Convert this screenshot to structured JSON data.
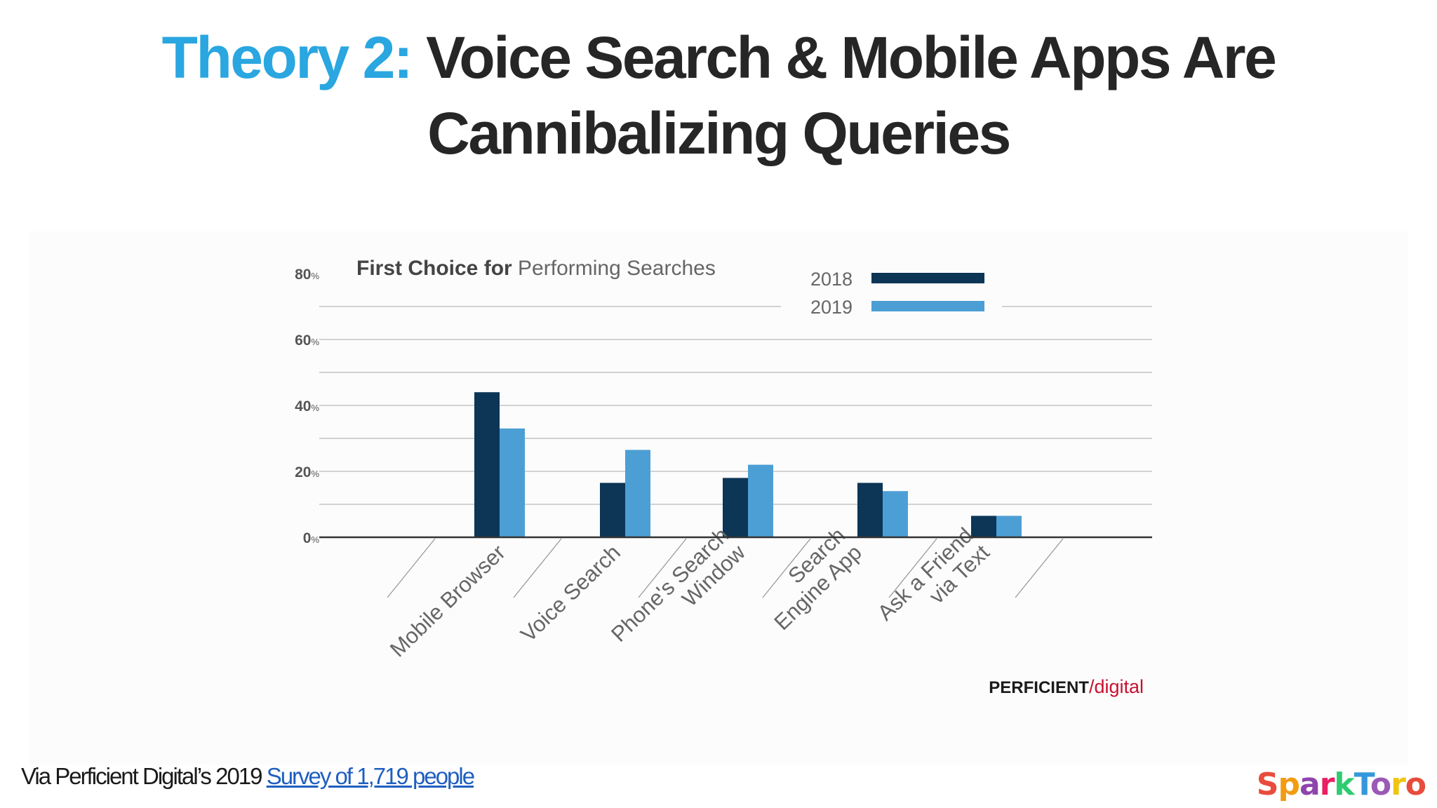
{
  "slide": {
    "title_prefix": "Theory 2:",
    "title_rest": " Voice Search & Mobile Apps Are Cannibalizing Queries",
    "source_text": "Via Perficient Digital’s 2019 ",
    "source_link_text": "Survey of 1,719 people",
    "logo_text": "SparkToro",
    "logo_colors": [
      "#e94b3c",
      "#f39c12",
      "#8e44ad",
      "#e91e63",
      "#2ecc71",
      "#3498db",
      "#9b59b6",
      "#f1c40f",
      "#e74c3c"
    ]
  },
  "chart_data": {
    "type": "bar",
    "title_bold": "First Choice for",
    "title_light": "Performing Searches",
    "categories": [
      [
        "Mobile Browser"
      ],
      [
        "Voice Search"
      ],
      [
        "Phone's Search",
        "Window"
      ],
      [
        "Search",
        "Engine App"
      ],
      [
        "Ask a Friend",
        "via Text"
      ]
    ],
    "series": [
      {
        "name": "2018",
        "color": "#0c3556",
        "values": [
          44,
          16.5,
          18,
          16.5,
          6.5
        ]
      },
      {
        "name": "2019",
        "color": "#4c9fd5",
        "values": [
          33,
          26.5,
          22,
          14,
          6.5
        ]
      }
    ],
    "yticks": [
      {
        "value": 80,
        "label": "80",
        "unit": "%"
      },
      {
        "value": 60,
        "label": "60",
        "unit": "%"
      },
      {
        "value": 40,
        "label": "40",
        "unit": "%"
      },
      {
        "value": 20,
        "label": "20",
        "unit": "%"
      },
      {
        "value": 0,
        "label": "0",
        "unit": "%"
      }
    ],
    "ylim": [
      0,
      80
    ],
    "gridlines_every": 10,
    "legend_position": "top-right",
    "branding": {
      "part1": "PERFICIENT",
      "part2": "digital",
      "color1": "#1a1a1a",
      "color2": "#c8102e"
    }
  }
}
